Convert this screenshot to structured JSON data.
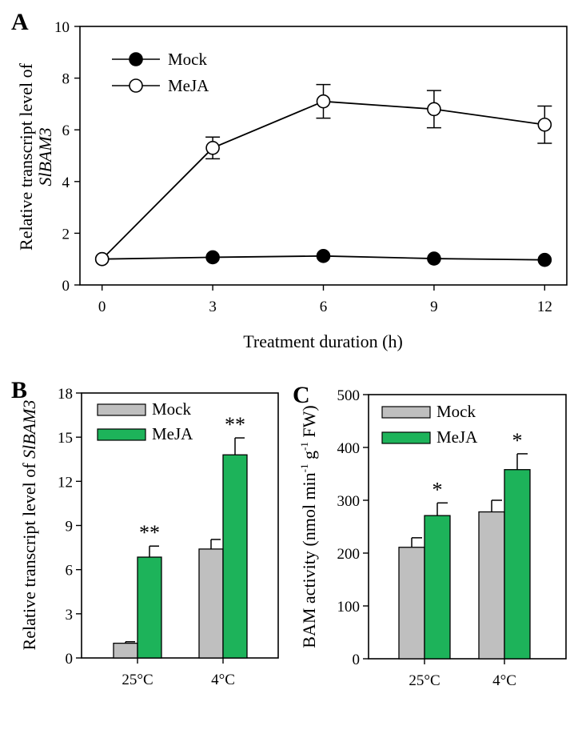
{
  "colors": {
    "mock_bar": "#bfbfbf",
    "meja_bar": "#1db35a",
    "mock_line": "#000000",
    "meja_line": "#ffffff"
  },
  "chart_data": [
    {
      "panel": "A",
      "type": "line",
      "xlabel": "Treatment duration (h)",
      "ylabel": "Relative transcript level of",
      "ylabel_gene": "SlBAM3",
      "x": [
        0,
        3,
        6,
        9,
        12
      ],
      "xticks": [
        "0",
        "3",
        "6",
        "9",
        "12"
      ],
      "yticks": [
        "0",
        "2",
        "4",
        "6",
        "8",
        "10"
      ],
      "xlim": [
        -0.6,
        12.6
      ],
      "ylim": [
        0,
        10
      ],
      "legend": "top-left",
      "series": [
        {
          "name": "Mock",
          "values": [
            1.0,
            1.07,
            1.12,
            1.02,
            0.97
          ],
          "errors": [
            0,
            0,
            0,
            0,
            0
          ]
        },
        {
          "name": "MeJA",
          "values": [
            1.0,
            5.3,
            7.1,
            6.8,
            6.2
          ],
          "errors": [
            0,
            0.42,
            0.65,
            0.72,
            0.72
          ]
        }
      ]
    },
    {
      "panel": "B",
      "type": "bar",
      "ylabel": "Relative transcript level of",
      "ylabel_gene": "SlBAM3",
      "categories": [
        "25°C",
        "4°C"
      ],
      "yticks": [
        "0",
        "3",
        "6",
        "9",
        "12",
        "15",
        "18"
      ],
      "ylim": [
        0,
        18
      ],
      "legend": "top-left",
      "series": [
        {
          "name": "Mock",
          "values": [
            1.0,
            7.4
          ],
          "errors": [
            0.1,
            0.65
          ]
        },
        {
          "name": "MeJA",
          "values": [
            6.85,
            13.8
          ],
          "errors": [
            0.75,
            1.15
          ]
        }
      ],
      "annotations": [
        "**",
        "**"
      ]
    },
    {
      "panel": "C",
      "type": "bar",
      "ylabel": "BAM activity (nmol min",
      "ylabel_sup1": "-1",
      "ylabel_mid": " g",
      "ylabel_sup2": "-1",
      "ylabel_end": " FW)",
      "categories": [
        "25°C",
        "4°C"
      ],
      "yticks": [
        "0",
        "100",
        "200",
        "300",
        "400",
        "500"
      ],
      "ylim": [
        0,
        500
      ],
      "legend": "top-left",
      "series": [
        {
          "name": "Mock",
          "values": [
            211,
            278
          ],
          "errors": [
            18,
            22
          ]
        },
        {
          "name": "MeJA",
          "values": [
            271,
            358
          ],
          "errors": [
            24,
            30
          ]
        }
      ],
      "annotations": [
        "*",
        "*"
      ]
    }
  ]
}
